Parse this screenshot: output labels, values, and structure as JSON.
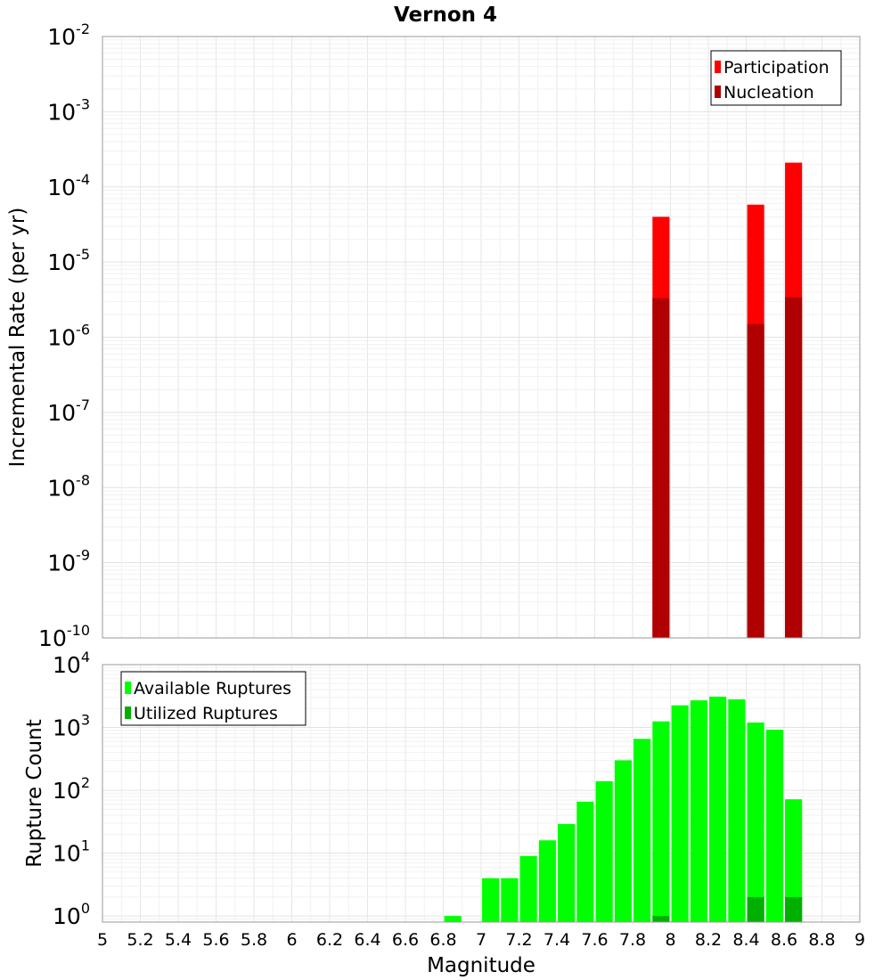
{
  "chart_data": [
    {
      "type": "bar",
      "title": "Vernon 4",
      "xlabel": "",
      "ylabel": "Incremental Rate (per yr)",
      "yscale": "log",
      "xlim": [
        5,
        9
      ],
      "ylim": [
        1e-10,
        0.01
      ],
      "y_tick_exponents": [
        -10,
        -9,
        -8,
        -7,
        -6,
        -5,
        -4,
        -3,
        -2
      ],
      "y_tick_base": "10",
      "grid": true,
      "bar_width": 0.09,
      "legend": {
        "placement": "top-right",
        "entries": [
          "Participation",
          "Nucleation"
        ]
      },
      "series": [
        {
          "name": "Participation",
          "color": "#ff0000",
          "x": [
            7.95,
            8.45,
            8.65
          ],
          "values": [
            4e-05,
            5.8e-05,
            0.00021
          ]
        },
        {
          "name": "Nucleation",
          "color": "#b00000",
          "x": [
            7.95,
            8.45,
            8.65
          ],
          "values": [
            3.3e-06,
            1.5e-06,
            3.4e-06
          ]
        }
      ]
    },
    {
      "type": "bar",
      "title": "",
      "xlabel": "Magnitude",
      "ylabel": "Rupture Count",
      "yscale": "log",
      "xlim": [
        5,
        9
      ],
      "ylim": [
        0.8,
        10000
      ],
      "y_tick_exponents": [
        0,
        1,
        2,
        3,
        4
      ],
      "y_tick_base": "10",
      "x_ticks": [
        "5",
        "5.2",
        "5.4",
        "5.6",
        "5.8",
        "6",
        "6.2",
        "6.4",
        "6.6",
        "6.8",
        "7",
        "7.2",
        "7.4",
        "7.6",
        "7.8",
        "8",
        "8.2",
        "8.4",
        "8.6",
        "8.8",
        "9"
      ],
      "grid": true,
      "bar_width": 0.09,
      "legend": {
        "placement": "top-left",
        "entries": [
          "Available Ruptures",
          "Utilized Ruptures"
        ]
      },
      "series": [
        {
          "name": "Available Ruptures",
          "color": "#00ff00",
          "x": [
            6.85,
            7.05,
            7.15,
            7.25,
            7.35,
            7.45,
            7.55,
            7.65,
            7.75,
            7.85,
            7.95,
            8.05,
            8.15,
            8.25,
            8.35,
            8.45,
            8.55,
            8.65
          ],
          "values": [
            1,
            4,
            4,
            9,
            16,
            29,
            66,
            140,
            300,
            660,
            1250,
            2250,
            2700,
            3100,
            2800,
            1200,
            920,
            72
          ]
        },
        {
          "name": "Utilized Ruptures",
          "color": "#00b000",
          "x": [
            7.95,
            8.45,
            8.65
          ],
          "values": [
            1,
            2,
            2
          ]
        }
      ]
    }
  ]
}
